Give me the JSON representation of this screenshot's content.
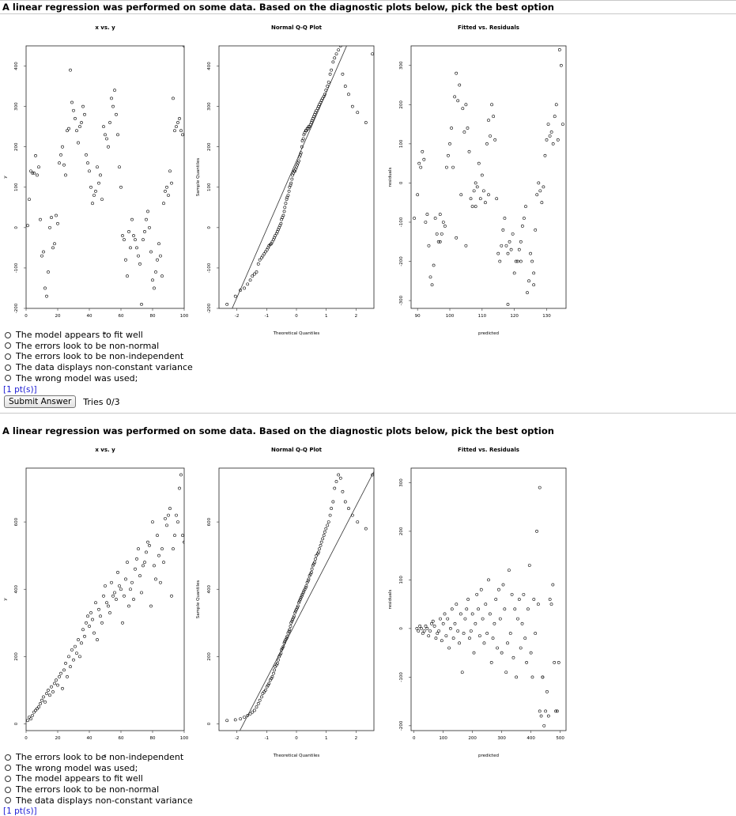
{
  "questions": [
    {
      "title": "A linear regression was performed on some data. Based on the diagnostic plots below, pick the best option",
      "options": [
        "The model appears to fit well",
        "The errors look to be non-normal",
        "The errors look to be non-independent",
        "The data displays non-constant variance",
        "The wrong model was used;"
      ],
      "points": "[1 pt(s)]",
      "submit_label": "Submit Answer",
      "tries": "Tries 0/3"
    },
    {
      "title": "A linear regression was performed on some data. Based on the diagnostic plots below, pick the best option",
      "options": [
        "The errors look to be non-independent",
        "The wrong model was used;",
        "The model appears to fit well",
        "The errors look to be non-normal",
        "The data displays non-constant variance"
      ],
      "points": "[1 pt(s)]"
    }
  ],
  "chart_data": [
    {
      "type": "scatter",
      "title": "x vs. y",
      "xlabel": "x",
      "ylabel": "y",
      "xlim": [
        0,
        100
      ],
      "ylim": [
        -200,
        450
      ],
      "xticks": [
        "0",
        "20",
        "40",
        "60",
        "80",
        "100"
      ],
      "yticks": [
        "-200",
        "-100",
        "0",
        "100",
        "200",
        "300",
        "400"
      ],
      "x": [
        1,
        2,
        3,
        4,
        5,
        6,
        7,
        8,
        9,
        10,
        11,
        12,
        13,
        14,
        15,
        16,
        17,
        18,
        19,
        20,
        21,
        22,
        23,
        24,
        25,
        26,
        27,
        28,
        29,
        30,
        31,
        32,
        33,
        34,
        35,
        36,
        37,
        38,
        39,
        40,
        41,
        42,
        43,
        44,
        45,
        46,
        47,
        48,
        49,
        50,
        51,
        52,
        53,
        54,
        55,
        56,
        57,
        58,
        59,
        60,
        61,
        62,
        63,
        64,
        65,
        66,
        67,
        68,
        69,
        70,
        71,
        72,
        73,
        74,
        75,
        76,
        77,
        78,
        79,
        80,
        81,
        82,
        83,
        84,
        85,
        86,
        87,
        88,
        89,
        90,
        91,
        92,
        93,
        94,
        95,
        96,
        97,
        98,
        99,
        100
      ],
      "y": [
        5,
        70,
        140,
        135,
        135,
        178,
        130,
        150,
        20,
        -70,
        -60,
        -150,
        -170,
        -110,
        0,
        25,
        -50,
        -40,
        30,
        10,
        160,
        180,
        200,
        155,
        130,
        240,
        245,
        390,
        310,
        290,
        270,
        240,
        210,
        250,
        260,
        300,
        280,
        180,
        160,
        140,
        100,
        60,
        80,
        90,
        150,
        110,
        130,
        70,
        250,
        230,
        220,
        200,
        260,
        320,
        300,
        340,
        280,
        230,
        150,
        100,
        -20,
        -30,
        -80,
        -120,
        -10,
        -50,
        20,
        -20,
        -30,
        -50,
        -70,
        -90,
        -190,
        -30,
        -10,
        20,
        40,
        0,
        -60,
        -130,
        -150,
        -110,
        -80,
        -40,
        -70,
        -120,
        60,
        90,
        100,
        80,
        140,
        110,
        320,
        240,
        250,
        260,
        270,
        240,
        230,
        450
      ],
      "ref_line": null
    },
    {
      "type": "scatter",
      "title": "Normal Q-Q Plot",
      "xlabel": "Theoretical Quantiles",
      "ylabel": "Sample Quantiles",
      "xlim": [
        -2.6,
        2.6
      ],
      "ylim": [
        -200,
        450
      ],
      "xticks": [
        "-2",
        "-1",
        "0",
        "1",
        "2"
      ],
      "yticks": [
        "-200",
        "-100",
        "0",
        "100",
        "200",
        "300",
        "400"
      ],
      "x": [
        -2.33,
        -2.05,
        -1.88,
        -1.75,
        -1.64,
        -1.55,
        -1.48,
        -1.41,
        -1.34,
        -1.28,
        -1.23,
        -1.17,
        -1.13,
        -1.08,
        -1.04,
        -0.99,
        -0.95,
        -0.92,
        -0.88,
        -0.84,
        -0.81,
        -0.77,
        -0.74,
        -0.71,
        -0.67,
        -0.64,
        -0.61,
        -0.58,
        -0.55,
        -0.52,
        -0.5,
        -0.47,
        -0.44,
        -0.41,
        -0.39,
        -0.36,
        -0.33,
        -0.31,
        -0.28,
        -0.25,
        -0.23,
        -0.2,
        -0.18,
        -0.15,
        -0.13,
        -0.1,
        -0.08,
        -0.05,
        -0.03,
        0,
        0.03,
        0.05,
        0.08,
        0.1,
        0.13,
        0.15,
        0.18,
        0.2,
        0.23,
        0.25,
        0.28,
        0.31,
        0.33,
        0.36,
        0.39,
        0.41,
        0.44,
        0.47,
        0.5,
        0.52,
        0.55,
        0.58,
        0.61,
        0.64,
        0.67,
        0.71,
        0.74,
        0.77,
        0.81,
        0.84,
        0.88,
        0.92,
        0.95,
        0.99,
        1.04,
        1.08,
        1.13,
        1.17,
        1.23,
        1.28,
        1.34,
        1.41,
        1.48,
        1.55,
        1.64,
        1.75,
        1.88,
        2.05,
        2.33,
        2.55
      ],
      "y": [
        -190,
        -170,
        -155,
        -150,
        -140,
        -130,
        -120,
        -115,
        -110,
        -90,
        -80,
        -75,
        -70,
        -65,
        -60,
        -55,
        -50,
        -45,
        -42,
        -40,
        -35,
        -30,
        -25,
        -20,
        -15,
        -10,
        -5,
        0,
        5,
        10,
        20,
        25,
        30,
        40,
        50,
        60,
        70,
        75,
        80,
        90,
        100,
        105,
        110,
        120,
        130,
        135,
        140,
        140,
        145,
        150,
        155,
        160,
        165,
        175,
        180,
        185,
        200,
        215,
        220,
        230,
        235,
        240,
        240,
        245,
        245,
        250,
        250,
        255,
        260,
        265,
        270,
        275,
        280,
        285,
        290,
        295,
        300,
        305,
        310,
        315,
        320,
        325,
        330,
        340,
        350,
        360,
        380,
        390,
        410,
        420,
        430,
        440,
        450,
        380,
        350,
        330,
        300,
        285,
        260,
        430
      ],
      "ref_line": [
        [
          -2.6,
          -275
        ],
        [
          2.6,
          605
        ]
      ]
    },
    {
      "type": "scatter",
      "title": "Fitted vs. Residuals",
      "xlabel": "predicted",
      "ylabel": "residuals",
      "xlim": [
        88,
        136
      ],
      "ylim": [
        -320,
        350
      ],
      "xticks": [
        "90",
        "100",
        "110",
        "120",
        "130"
      ],
      "yticks": [
        "-300",
        "-200",
        "-100",
        "0",
        "100",
        "200",
        "300"
      ],
      "x": [
        89,
        90,
        90.5,
        91,
        91.5,
        92,
        92.5,
        93,
        93.5,
        94,
        94.5,
        95,
        95.5,
        96,
        96.5,
        97,
        97.5,
        98,
        98.5,
        99,
        99.5,
        100,
        100.5,
        101,
        101.5,
        102,
        102.5,
        103,
        103.5,
        104,
        104.5,
        105,
        105.5,
        106,
        106.5,
        107,
        107.5,
        108,
        108.5,
        109,
        109.5,
        110,
        110.5,
        111,
        111.5,
        112,
        112.5,
        113,
        113.5,
        114,
        114.5,
        115,
        115.5,
        116,
        116.5,
        117,
        117.5,
        118,
        118.5,
        119,
        119.5,
        120,
        120.5,
        121,
        121.5,
        122,
        122.5,
        123,
        123.5,
        124,
        124.5,
        125,
        125.5,
        126,
        126.5,
        127,
        127.5,
        128,
        128.5,
        129,
        129.5,
        130,
        130.5,
        131,
        131.5,
        132,
        132.5,
        133,
        133.5,
        134,
        134.5,
        135,
        97,
        102,
        105,
        108,
        112,
        118,
        122,
        126
      ],
      "y": [
        -90,
        -30,
        50,
        40,
        80,
        60,
        -100,
        -80,
        -160,
        -240,
        -260,
        -210,
        -90,
        -130,
        -150,
        -80,
        -130,
        -100,
        -110,
        40,
        70,
        100,
        140,
        40,
        220,
        280,
        210,
        250,
        -30,
        190,
        130,
        200,
        140,
        80,
        -40,
        -60,
        -20,
        0,
        -10,
        50,
        -40,
        20,
        -20,
        -50,
        100,
        160,
        120,
        200,
        170,
        110,
        -40,
        -180,
        -200,
        -160,
        -120,
        -90,
        -160,
        -180,
        -150,
        -170,
        -130,
        -230,
        -200,
        -200,
        -170,
        -150,
        -110,
        -90,
        -60,
        -280,
        -250,
        -180,
        -200,
        -230,
        -120,
        -30,
        0,
        -20,
        -50,
        -10,
        70,
        110,
        150,
        120,
        130,
        100,
        170,
        200,
        110,
        340,
        300,
        150,
        -150,
        -140,
        -160,
        -60,
        -30,
        -310,
        -200,
        -260
      ],
      "ref_line": null
    },
    {
      "type": "scatter",
      "title": "x vs. y",
      "xlabel": "x",
      "ylabel": "y",
      "xlim": [
        0,
        100
      ],
      "ylim": [
        -20,
        760
      ],
      "xticks": [
        "0",
        "20",
        "40",
        "60",
        "80",
        "100"
      ],
      "yticks": [
        "0",
        "200",
        "400",
        "600"
      ],
      "x": [
        1,
        2,
        3,
        4,
        5,
        6,
        7,
        8,
        9,
        10,
        11,
        12,
        13,
        14,
        15,
        16,
        17,
        18,
        19,
        20,
        21,
        22,
        23,
        24,
        25,
        26,
        27,
        28,
        29,
        30,
        31,
        32,
        33,
        34,
        35,
        36,
        37,
        38,
        39,
        40,
        41,
        42,
        43,
        44,
        45,
        46,
        47,
        48,
        49,
        50,
        51,
        52,
        53,
        54,
        55,
        56,
        57,
        58,
        59,
        60,
        61,
        62,
        63,
        64,
        65,
        66,
        67,
        68,
        69,
        70,
        71,
        72,
        73,
        74,
        75,
        76,
        77,
        78,
        79,
        80,
        81,
        82,
        83,
        84,
        85,
        86,
        87,
        88,
        89,
        90,
        91,
        92,
        93,
        94,
        95,
        96,
        97,
        98,
        99,
        100
      ],
      "y": [
        10,
        20,
        15,
        25,
        35,
        40,
        45,
        50,
        60,
        70,
        80,
        65,
        90,
        100,
        85,
        110,
        95,
        120,
        130,
        115,
        140,
        150,
        105,
        160,
        180,
        140,
        200,
        170,
        220,
        190,
        230,
        210,
        250,
        200,
        240,
        280,
        260,
        300,
        320,
        290,
        330,
        310,
        270,
        360,
        250,
        340,
        320,
        300,
        380,
        410,
        360,
        350,
        330,
        420,
        380,
        390,
        370,
        450,
        410,
        400,
        300,
        380,
        430,
        480,
        350,
        400,
        420,
        370,
        460,
        490,
        520,
        440,
        390,
        470,
        480,
        510,
        540,
        530,
        350,
        600,
        470,
        430,
        560,
        500,
        420,
        520,
        480,
        610,
        590,
        620,
        640,
        380,
        520,
        560,
        620,
        600,
        700,
        740,
        560,
        540
      ],
      "ref_line": null
    },
    {
      "type": "scatter",
      "title": "Normal Q-Q Plot",
      "xlabel": "Theoretical Quantiles",
      "ylabel": "Sample Quantiles",
      "xlim": [
        -2.6,
        2.6
      ],
      "ylim": [
        -20,
        760
      ],
      "xticks": [
        "-2",
        "-1",
        "0",
        "1",
        "2"
      ],
      "yticks": [
        "0",
        "200",
        "400",
        "600"
      ],
      "x": [
        -2.33,
        -2.05,
        -1.88,
        -1.75,
        -1.64,
        -1.55,
        -1.48,
        -1.41,
        -1.34,
        -1.28,
        -1.23,
        -1.17,
        -1.13,
        -1.08,
        -1.04,
        -0.99,
        -0.95,
        -0.92,
        -0.88,
        -0.84,
        -0.81,
        -0.77,
        -0.74,
        -0.71,
        -0.67,
        -0.64,
        -0.61,
        -0.58,
        -0.55,
        -0.52,
        -0.5,
        -0.47,
        -0.44,
        -0.41,
        -0.39,
        -0.36,
        -0.33,
        -0.31,
        -0.28,
        -0.25,
        -0.23,
        -0.2,
        -0.18,
        -0.15,
        -0.13,
        -0.1,
        -0.08,
        -0.05,
        -0.03,
        0,
        0.03,
        0.05,
        0.08,
        0.1,
        0.13,
        0.15,
        0.18,
        0.2,
        0.23,
        0.25,
        0.28,
        0.31,
        0.33,
        0.36,
        0.39,
        0.41,
        0.44,
        0.47,
        0.5,
        0.52,
        0.55,
        0.58,
        0.61,
        0.64,
        0.67,
        0.71,
        0.74,
        0.77,
        0.81,
        0.84,
        0.88,
        0.92,
        0.95,
        0.99,
        1.04,
        1.08,
        1.13,
        1.17,
        1.23,
        1.28,
        1.34,
        1.41,
        1.48,
        1.55,
        1.64,
        1.75,
        1.88,
        2.05,
        2.33,
        2.55
      ],
      "y": [
        10,
        12,
        15,
        20,
        25,
        30,
        35,
        40,
        50,
        60,
        70,
        80,
        90,
        95,
        100,
        110,
        115,
        120,
        130,
        135,
        140,
        150,
        160,
        170,
        175,
        180,
        190,
        200,
        205,
        210,
        220,
        225,
        230,
        240,
        245,
        250,
        255,
        260,
        270,
        275,
        280,
        290,
        300,
        305,
        310,
        315,
        320,
        330,
        335,
        340,
        345,
        350,
        360,
        365,
        370,
        375,
        380,
        385,
        390,
        395,
        400,
        405,
        410,
        420,
        425,
        430,
        440,
        445,
        450,
        460,
        470,
        475,
        480,
        490,
        500,
        505,
        510,
        520,
        530,
        540,
        550,
        560,
        570,
        580,
        590,
        600,
        620,
        640,
        660,
        700,
        720,
        740,
        730,
        690,
        660,
        640,
        620,
        600,
        580,
        740
      ],
      "ref_line": [
        [
          -2.6,
          -140
        ],
        [
          2.6,
          750
        ]
      ]
    },
    {
      "type": "scatter",
      "title": "Fitted vs. Residuals",
      "xlabel": "predicted",
      "ylabel": "residuals",
      "xlim": [
        -10,
        520
      ],
      "ylim": [
        -210,
        330
      ],
      "xticks": [
        "0",
        "100",
        "200",
        "300",
        "400",
        "500"
      ],
      "yticks": [
        "-200",
        "-100",
        "0",
        "100",
        "200",
        "300"
      ],
      "x": [
        10,
        15,
        20,
        25,
        30,
        35,
        40,
        45,
        50,
        55,
        60,
        65,
        70,
        75,
        80,
        85,
        90,
        95,
        100,
        105,
        110,
        115,
        120,
        125,
        130,
        135,
        140,
        145,
        150,
        155,
        160,
        165,
        170,
        175,
        180,
        185,
        190,
        195,
        200,
        205,
        210,
        215,
        220,
        225,
        230,
        235,
        240,
        245,
        250,
        255,
        260,
        265,
        270,
        275,
        280,
        285,
        290,
        295,
        300,
        305,
        310,
        315,
        320,
        325,
        330,
        335,
        340,
        345,
        350,
        355,
        360,
        365,
        370,
        375,
        380,
        385,
        390,
        395,
        400,
        405,
        410,
        415,
        420,
        425,
        430,
        435,
        440,
        445,
        450,
        455,
        460,
        465,
        470,
        475,
        480,
        485,
        490,
        495,
        430,
        440
      ],
      "y": [
        0,
        -5,
        5,
        0,
        -10,
        -5,
        5,
        0,
        -15,
        -5,
        10,
        15,
        5,
        -20,
        -10,
        -5,
        20,
        -25,
        10,
        30,
        -15,
        20,
        -40,
        0,
        40,
        -20,
        10,
        50,
        -5,
        -30,
        30,
        -90,
        -10,
        20,
        40,
        60,
        -20,
        -5,
        30,
        -50,
        10,
        70,
        40,
        -15,
        80,
        20,
        -30,
        50,
        -10,
        100,
        30,
        -70,
        -20,
        10,
        60,
        -40,
        80,
        20,
        -50,
        90,
        40,
        -90,
        -30,
        120,
        -10,
        70,
        -60,
        40,
        -100,
        20,
        60,
        -40,
        10,
        70,
        -20,
        -70,
        40,
        130,
        -50,
        -100,
        60,
        -10,
        200,
        50,
        -170,
        -180,
        -100,
        -200,
        -170,
        -130,
        -180,
        60,
        50,
        90,
        -70,
        -170,
        -170,
        -70,
        290,
        -100
      ],
      "ref_line": null
    }
  ]
}
